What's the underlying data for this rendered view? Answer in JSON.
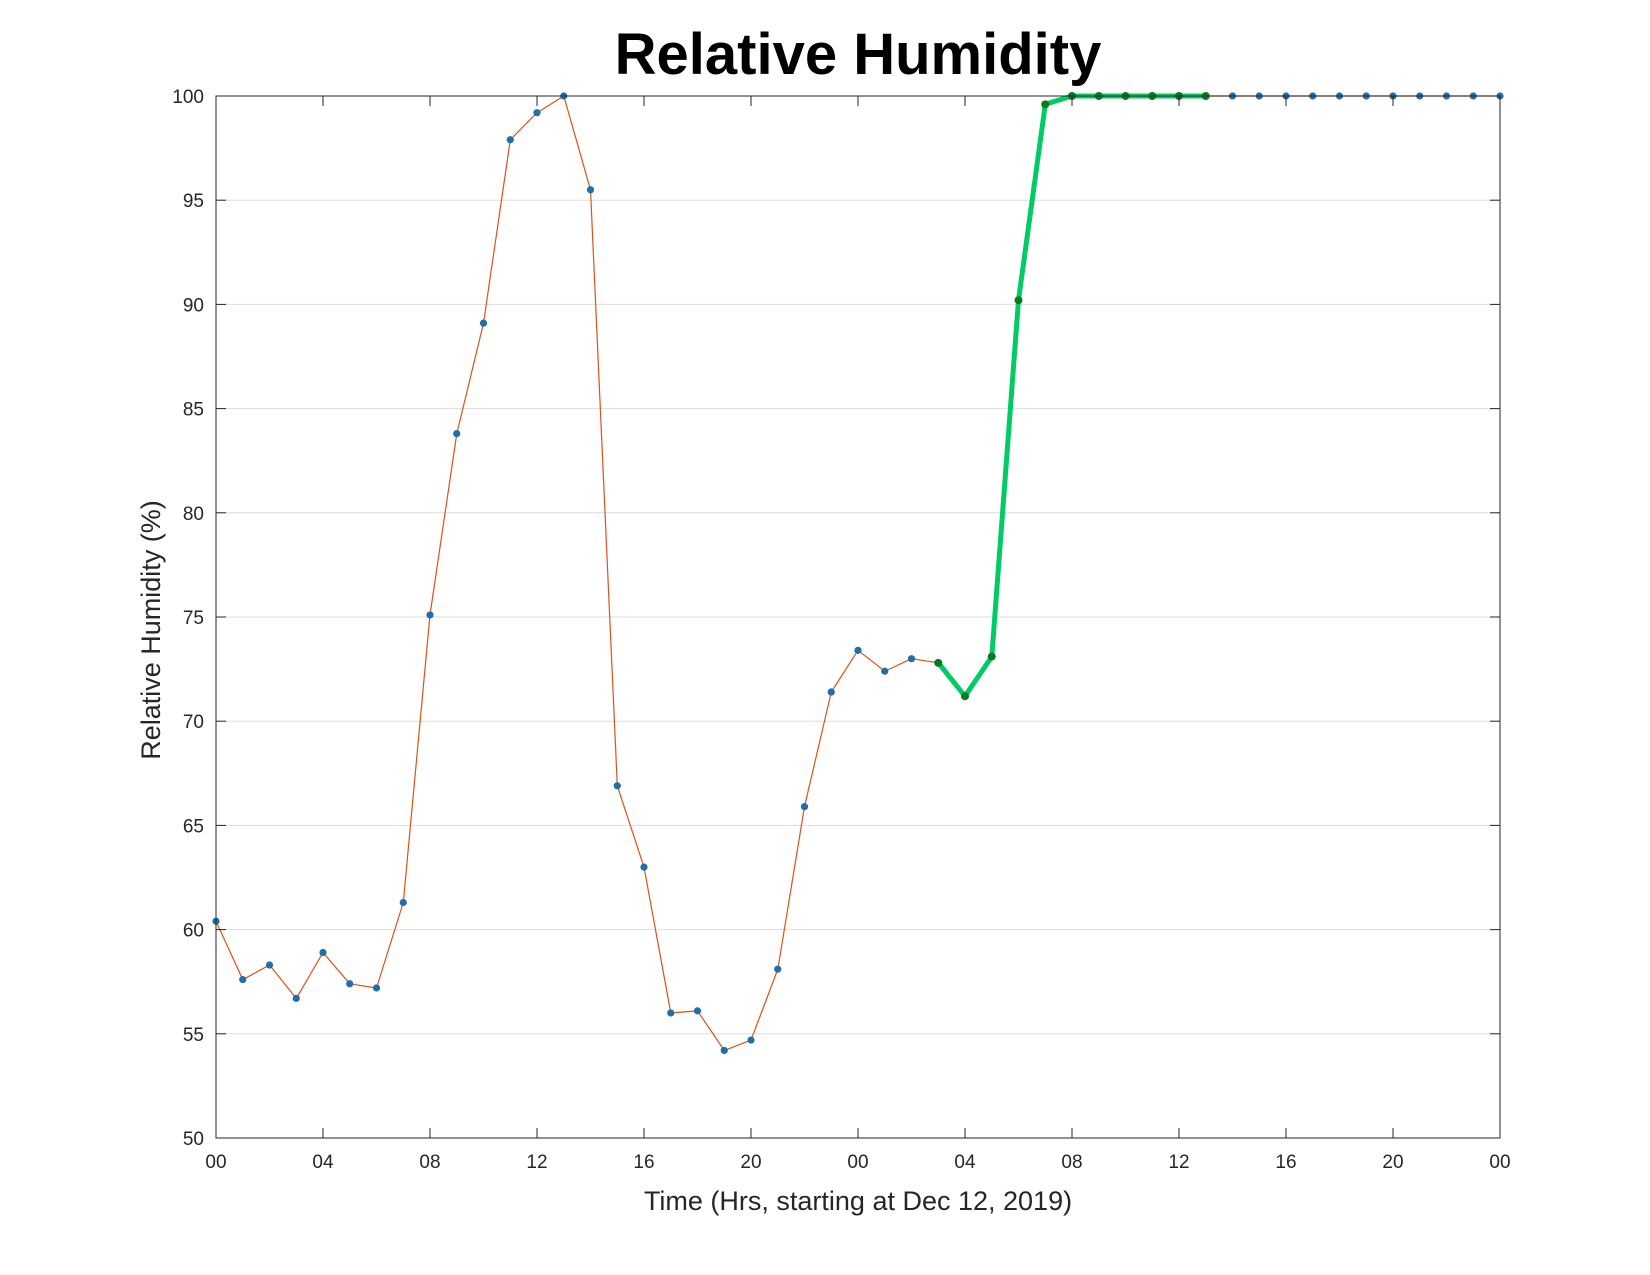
{
  "chart_data": {
    "type": "line",
    "title": "Relative Humidity",
    "xlabel": "Time (Hrs, starting at Dec 12, 2019)",
    "ylabel": "Relative Humidity (%)",
    "xlim": [
      0,
      48
    ],
    "ylim": [
      50,
      100
    ],
    "xtick_values": [
      0,
      4,
      8,
      12,
      16,
      20,
      24,
      28,
      32,
      36,
      40,
      44,
      48
    ],
    "xtick_labels": [
      "00",
      "04",
      "08",
      "12",
      "16",
      "20",
      "00",
      "04",
      "08",
      "12",
      "16",
      "20",
      "00"
    ],
    "yticks": [
      50,
      55,
      60,
      65,
      70,
      75,
      80,
      85,
      90,
      95,
      100
    ],
    "grid": "horizontal",
    "legend": "none",
    "series": [
      {
        "color": "#d95319",
        "marker_color": "#1f6fa8",
        "x": [
          0,
          1,
          2,
          3,
          4,
          5,
          6,
          7,
          8,
          9,
          10,
          11,
          12,
          13,
          14,
          15,
          16,
          17,
          18,
          19,
          20,
          21,
          22,
          23,
          24,
          25,
          26,
          27,
          28,
          29,
          30,
          31,
          32,
          33,
          34,
          35,
          36,
          37,
          38,
          39,
          40,
          41,
          42,
          43,
          44,
          45,
          46,
          47,
          48
        ],
        "values": [
          60.4,
          57.6,
          58.3,
          56.7,
          58.9,
          57.4,
          57.2,
          61.3,
          75.1,
          83.8,
          89.1,
          97.9,
          99.2,
          100,
          95.5,
          66.9,
          63.0,
          56.0,
          56.1,
          54.2,
          54.7,
          58.1,
          65.9,
          71.4,
          73.4,
          72.4,
          73.0,
          72.8,
          71.2,
          73.1,
          90.2,
          99.6,
          100,
          100,
          100,
          100,
          100,
          100,
          100,
          100,
          100,
          100,
          100,
          100,
          100,
          100,
          100,
          100,
          100
        ]
      },
      {
        "color": "#00cc66",
        "marker_color": "#0b7a1f",
        "x": [
          27,
          28,
          29,
          30,
          31,
          32,
          33,
          34,
          35,
          36,
          37
        ],
        "values": [
          72.8,
          71.2,
          73.1,
          90.2,
          99.6,
          100,
          100,
          100,
          100,
          100,
          100
        ]
      }
    ]
  }
}
